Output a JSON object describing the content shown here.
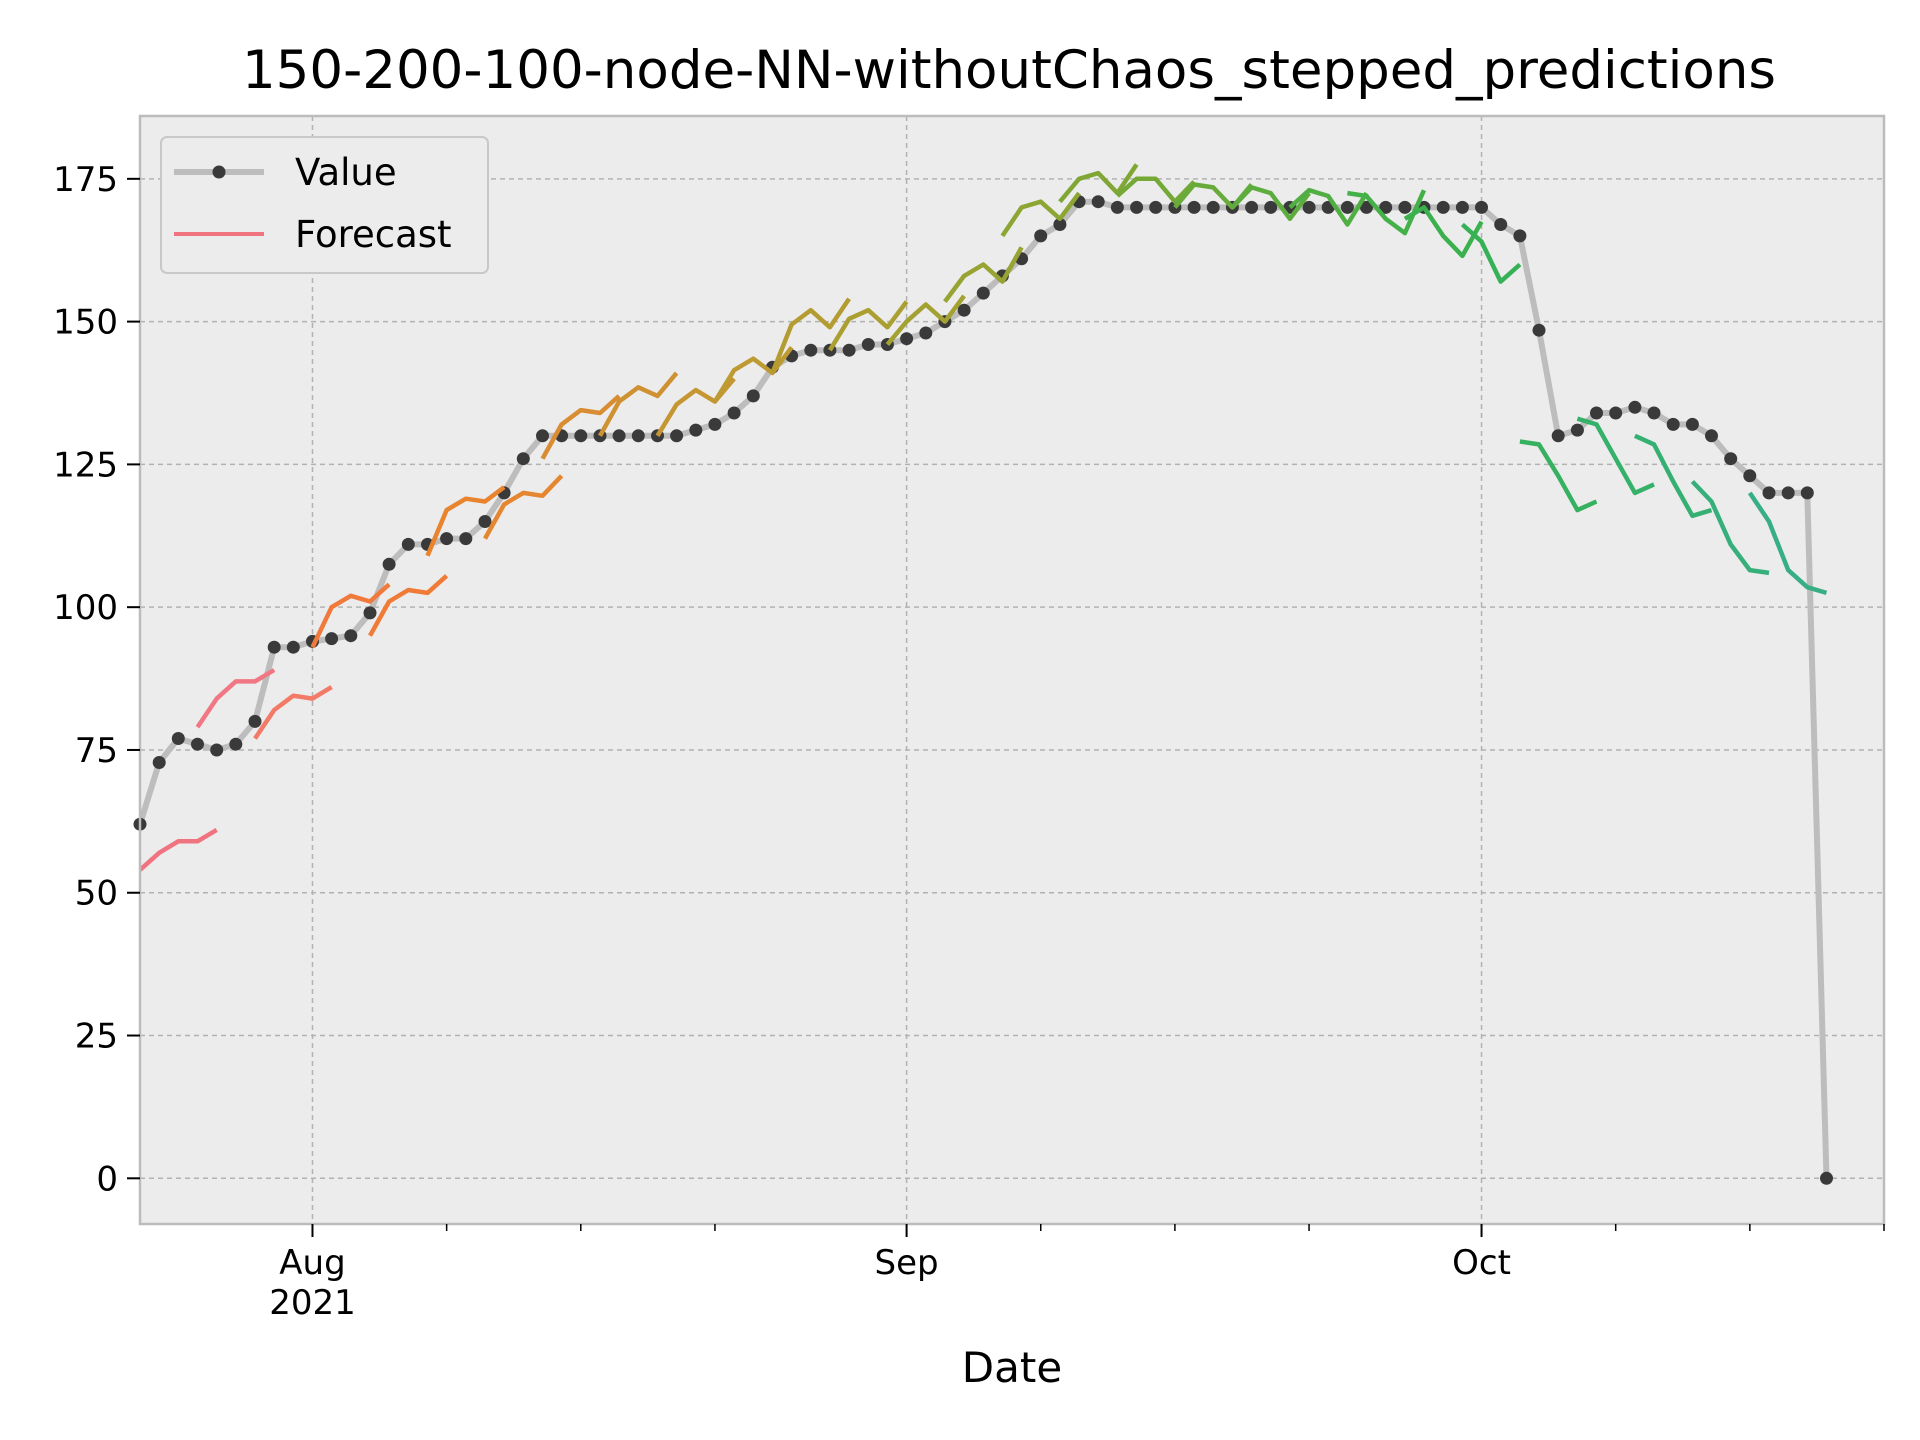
{
  "chart_data": {
    "type": "line",
    "title": "150-200-100-node-NN-withoutChaos_stepped_predictions",
    "xlabel": "Date",
    "ylabel": "",
    "xlim": [
      "2021-07-23",
      "2021-10-22"
    ],
    "ylim": [
      -8,
      186
    ],
    "yticks": [
      0,
      25,
      50,
      75,
      100,
      125,
      150,
      175
    ],
    "xticks": [
      {
        "date": "2021-08-01",
        "label": "Aug",
        "sublabel": "2021"
      },
      {
        "date": "2021-09-01",
        "label": "Sep",
        "sublabel": ""
      },
      {
        "date": "2021-10-01",
        "label": "Oct",
        "sublabel": ""
      }
    ],
    "grid": true,
    "legend": {
      "placement": "top-left",
      "entries": [
        {
          "label": "Value",
          "color": "#bdbdbd",
          "marker_color": "#3a3a3a"
        },
        {
          "label": "Forecast",
          "color": "#f07480"
        }
      ]
    },
    "series": [
      {
        "name": "Value",
        "start_date": "2021-07-23",
        "values": [
          62,
          72.8,
          77,
          76,
          75,
          76,
          80,
          93,
          93,
          94,
          94.5,
          95,
          99,
          107.5,
          111,
          111,
          112,
          112,
          115,
          120,
          126,
          130,
          130,
          130,
          130,
          130,
          130,
          130,
          130,
          131,
          132,
          134,
          137,
          142,
          144,
          145,
          145,
          145,
          146,
          146,
          147,
          148,
          150,
          152,
          155,
          158,
          161,
          165,
          167,
          171,
          171,
          170,
          170,
          170,
          170,
          170,
          170,
          170,
          170,
          170,
          170,
          170,
          170,
          170,
          170,
          170,
          170,
          170,
          170,
          170,
          170,
          167,
          165,
          148.5,
          130,
          131,
          134,
          134,
          135,
          134,
          132,
          132,
          130,
          126,
          123,
          120,
          120,
          120,
          0
        ]
      }
    ],
    "forecasts": [
      {
        "start_date": "2021-07-23",
        "values": [
          54,
          57,
          59,
          59,
          61
        ],
        "color": "#f07480"
      },
      {
        "start_date": "2021-07-26",
        "values": [
          79,
          84,
          87,
          87,
          89
        ],
        "color": "#f07783"
      },
      {
        "start_date": "2021-07-29",
        "values": [
          77,
          82,
          84.5,
          84,
          86
        ],
        "color": "#f27a66"
      },
      {
        "start_date": "2021-08-01",
        "values": [
          93,
          100,
          102,
          101,
          104
        ],
        "color": "#f0793c"
      },
      {
        "start_date": "2021-08-04",
        "values": [
          95,
          101,
          103,
          102.5,
          105.5
        ],
        "color": "#ef7b36"
      },
      {
        "start_date": "2021-08-07",
        "values": [
          109,
          117,
          119,
          118.5,
          121
        ],
        "color": "#e8832e"
      },
      {
        "start_date": "2021-08-10",
        "values": [
          112,
          118,
          120,
          119.5,
          123
        ],
        "color": "#e58630"
      },
      {
        "start_date": "2021-08-13",
        "values": [
          126,
          132,
          134.5,
          134,
          137
        ],
        "color": "#d98c32"
      },
      {
        "start_date": "2021-08-16",
        "values": [
          130,
          136,
          138.5,
          137,
          141
        ],
        "color": "#cf9232"
      },
      {
        "start_date": "2021-08-19",
        "values": [
          130,
          135.5,
          138,
          136,
          140
        ],
        "color": "#c59632"
      },
      {
        "start_date": "2021-08-22",
        "values": [
          136,
          141.5,
          143.5,
          141,
          145.5
        ],
        "color": "#bd9a32"
      },
      {
        "start_date": "2021-08-25",
        "values": [
          141,
          149.5,
          152,
          149,
          154
        ],
        "color": "#b49c32"
      },
      {
        "start_date": "2021-08-28",
        "values": [
          145,
          150.5,
          152,
          149,
          153.5
        ],
        "color": "#ab9f32"
      },
      {
        "start_date": "2021-08-31",
        "values": [
          146,
          150,
          153,
          150,
          154.5
        ],
        "color": "#a2a132"
      },
      {
        "start_date": "2021-09-03",
        "values": [
          153.5,
          158,
          160,
          157,
          163
        ],
        "color": "#97a332"
      },
      {
        "start_date": "2021-09-06",
        "values": [
          165,
          170,
          171,
          168,
          172.5
        ],
        "color": "#8ca533"
      },
      {
        "start_date": "2021-09-09",
        "values": [
          171,
          175,
          176,
          172.5,
          177.5
        ],
        "color": "#80a735"
      },
      {
        "start_date": "2021-09-12",
        "values": [
          172,
          175,
          175,
          171,
          174.5
        ],
        "color": "#74a937"
      },
      {
        "start_date": "2021-09-15",
        "values": [
          170,
          174,
          173.5,
          170,
          174
        ],
        "color": "#68ab3a"
      },
      {
        "start_date": "2021-09-18",
        "values": [
          170,
          173.5,
          172.5,
          168,
          172.5
        ],
        "color": "#5cad3e"
      },
      {
        "start_date": "2021-09-21",
        "values": [
          170,
          173,
          172,
          167,
          172.5
        ],
        "color": "#50af42"
      },
      {
        "start_date": "2021-09-24",
        "values": [
          172.5,
          172,
          168,
          165.5,
          173
        ],
        "color": "#44b048"
      },
      {
        "start_date": "2021-09-27",
        "values": [
          168,
          170,
          165,
          161.5,
          167.5
        ],
        "color": "#3bb14e"
      },
      {
        "start_date": "2021-09-30",
        "values": [
          167,
          164,
          157,
          160
        ],
        "color": "#36b156"
      },
      {
        "start_date": "2021-10-03",
        "values": [
          129,
          128.5,
          123,
          117,
          118.5
        ],
        "color": "#35b15f"
      },
      {
        "start_date": "2021-10-06",
        "values": [
          133,
          132,
          126,
          120,
          121.5
        ],
        "color": "#35b169"
      },
      {
        "start_date": "2021-10-09",
        "values": [
          130,
          128.5,
          122,
          116,
          117
        ],
        "color": "#35b072"
      },
      {
        "start_date": "2021-10-12",
        "values": [
          122,
          118.5,
          111,
          106.5,
          106
        ],
        "color": "#36af7b"
      },
      {
        "start_date": "2021-10-15",
        "values": [
          120,
          115,
          106.5,
          103.5,
          102.5
        ],
        "color": "#38ae85"
      }
    ]
  }
}
